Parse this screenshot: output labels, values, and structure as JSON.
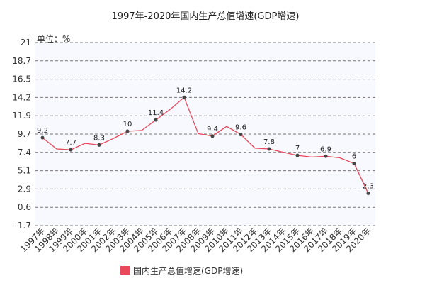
{
  "chart_data": {
    "type": "line",
    "title": "1997年-2020年国内生产总值增速(GDP增速)",
    "unit_label": "单位：%",
    "categories": [
      "1997年",
      "1998年",
      "1999年",
      "2000年",
      "2001年",
      "2002年",
      "2003年",
      "2004年",
      "2005年",
      "2006年",
      "2007年",
      "2008年",
      "2009年",
      "2010年",
      "2011年",
      "2012年",
      "2013年",
      "2014年",
      "2015年",
      "2016年",
      "2017年",
      "2018年",
      "2019年",
      "2020年"
    ],
    "series": [
      {
        "name": "国内生产总值增速(GDP增速)",
        "color": "#e8495b",
        "values": [
          9.2,
          7.8,
          7.7,
          8.5,
          8.3,
          9.1,
          10,
          10.1,
          11.4,
          12.7,
          14.2,
          9.7,
          9.4,
          10.6,
          9.6,
          7.9,
          7.8,
          7.4,
          7,
          6.8,
          6.9,
          6.7,
          6,
          2.3
        ]
      }
    ],
    "data_labels": [
      {
        "index": 0,
        "text": "9.2"
      },
      {
        "index": 2,
        "text": "7.7"
      },
      {
        "index": 4,
        "text": "8.3"
      },
      {
        "index": 6,
        "text": "10"
      },
      {
        "index": 8,
        "text": "11.4"
      },
      {
        "index": 10,
        "text": "14.2"
      },
      {
        "index": 12,
        "text": "9.4"
      },
      {
        "index": 14,
        "text": "9.6"
      },
      {
        "index": 16,
        "text": "7.8"
      },
      {
        "index": 18,
        "text": "7"
      },
      {
        "index": 20,
        "text": "6.9"
      },
      {
        "index": 22,
        "text": "6"
      },
      {
        "index": 23,
        "text": "2.3"
      }
    ],
    "yticks": [
      "21",
      "18.7",
      "16.5",
      "14.2",
      "11.9",
      "9.7",
      "7.4",
      "5.1",
      "2.9",
      "0.6",
      "-1.7"
    ],
    "ylim": [
      -1.7,
      21
    ],
    "grid": true,
    "legend_position": "bottom",
    "background_color": "#f8f8ff",
    "grid_color": "#777777"
  }
}
